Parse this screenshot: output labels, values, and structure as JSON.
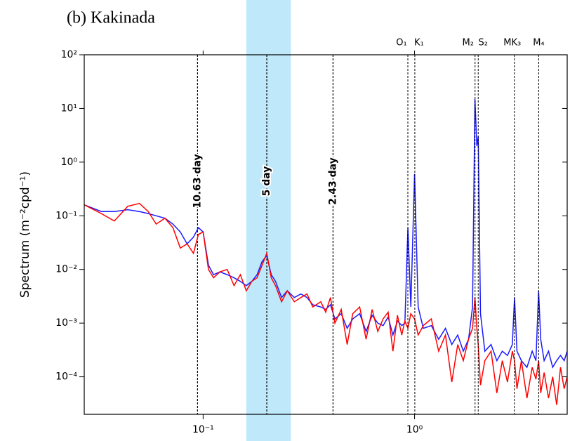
{
  "chart_data": {
    "type": "line",
    "title": "(b) Kakinada",
    "ylabel": "Spectrum (m⁻²cpd⁻¹)",
    "xscale": "log",
    "yscale": "log",
    "xlim": [
      0.0274,
      5.27
    ],
    "ylim": [
      2e-05,
      100
    ],
    "xticks": [
      {
        "value": 0.1,
        "label": "10⁻¹"
      },
      {
        "value": 1,
        "label": "10⁰"
      }
    ],
    "yticks": [
      {
        "value": 100,
        "label": "10²"
      },
      {
        "value": 10,
        "label": "10¹"
      },
      {
        "value": 1,
        "label": "10⁰"
      },
      {
        "value": 0.1,
        "label": "10⁻¹"
      },
      {
        "value": 0.01,
        "label": "10⁻²"
      },
      {
        "value": 0.001,
        "label": "10⁻³"
      },
      {
        "value": 0.0001,
        "label": "10⁻⁴"
      }
    ],
    "shaded_band": {
      "range": [
        0.16,
        0.26
      ],
      "color": "#bfe8fb"
    },
    "period_lines": [
      {
        "label": "10.63 day",
        "x": 0.0941
      },
      {
        "label": "5 day",
        "x": 0.2
      },
      {
        "label": "2.43 day",
        "x": 0.4115
      }
    ],
    "tidal_lines": [
      {
        "label": "O₁",
        "x": 0.9295
      },
      {
        "label": "K₁",
        "x": 1.0027
      },
      {
        "label": "M₂",
        "x": 1.9323
      },
      {
        "label": "S₂",
        "x": 2.0
      },
      {
        "label": "MK₃",
        "x": 2.9653
      },
      {
        "label": "M₄",
        "x": 3.8645
      }
    ],
    "x": [
      0.0274,
      0.033,
      0.038,
      0.044,
      0.05,
      0.055,
      0.06,
      0.066,
      0.072,
      0.078,
      0.084,
      0.09,
      0.095,
      0.1,
      0.106,
      0.112,
      0.12,
      0.13,
      0.14,
      0.15,
      0.16,
      0.17,
      0.18,
      0.19,
      0.2,
      0.21,
      0.22,
      0.235,
      0.25,
      0.27,
      0.29,
      0.31,
      0.33,
      0.36,
      0.38,
      0.4,
      0.42,
      0.45,
      0.48,
      0.51,
      0.55,
      0.59,
      0.63,
      0.67,
      0.71,
      0.75,
      0.79,
      0.83,
      0.87,
      0.9,
      0.93,
      0.96,
      1.0,
      1.04,
      1.1,
      1.2,
      1.3,
      1.4,
      1.5,
      1.6,
      1.7,
      1.8,
      1.88,
      1.93,
      1.97,
      2.0,
      2.05,
      2.15,
      2.3,
      2.45,
      2.6,
      2.75,
      2.9,
      2.97,
      3.05,
      3.2,
      3.4,
      3.6,
      3.75,
      3.86,
      3.95,
      4.1,
      4.3,
      4.5,
      4.7,
      4.9,
      5.1,
      5.27
    ],
    "series": [
      {
        "color": "#1a1aff",
        "values": [
          0.16,
          0.12,
          0.12,
          0.13,
          0.12,
          0.11,
          0.1,
          0.09,
          0.07,
          0.05,
          0.03,
          0.04,
          0.06,
          0.05,
          0.012,
          0.008,
          0.009,
          0.008,
          0.007,
          0.006,
          0.005,
          0.006,
          0.008,
          0.014,
          0.018,
          0.008,
          0.006,
          0.003,
          0.004,
          0.003,
          0.0035,
          0.003,
          0.0022,
          0.002,
          0.0018,
          0.0022,
          0.0012,
          0.0015,
          0.0008,
          0.0012,
          0.0015,
          0.0007,
          0.0014,
          0.001,
          0.0009,
          0.0013,
          0.0006,
          0.0011,
          0.0009,
          0.001,
          0.06,
          0.002,
          0.6,
          0.002,
          0.0008,
          0.0009,
          0.0005,
          0.0008,
          0.0004,
          0.0006,
          0.0003,
          0.0005,
          0.002,
          15,
          2,
          3,
          0.0015,
          0.0003,
          0.0004,
          0.0002,
          0.0003,
          0.00025,
          0.0004,
          0.003,
          0.0003,
          0.0002,
          0.00015,
          0.0003,
          0.0002,
          0.004,
          0.0005,
          0.0002,
          0.0003,
          0.00015,
          0.0002,
          0.00025,
          0.0002,
          0.0003
        ]
      },
      {
        "color": "#ff0000",
        "values": [
          0.16,
          0.11,
          0.08,
          0.15,
          0.17,
          0.12,
          0.07,
          0.09,
          0.06,
          0.025,
          0.03,
          0.02,
          0.045,
          0.05,
          0.01,
          0.007,
          0.009,
          0.01,
          0.005,
          0.008,
          0.004,
          0.006,
          0.007,
          0.012,
          0.02,
          0.007,
          0.005,
          0.0025,
          0.004,
          0.0025,
          0.003,
          0.0035,
          0.002,
          0.0025,
          0.0016,
          0.003,
          0.001,
          0.0018,
          0.0004,
          0.0015,
          0.002,
          0.0005,
          0.0018,
          0.0007,
          0.0012,
          0.0016,
          0.0003,
          0.0014,
          0.0006,
          0.0011,
          0.0008,
          0.0015,
          0.0012,
          0.0006,
          0.0009,
          0.0012,
          0.0003,
          0.0006,
          8e-05,
          0.0004,
          0.0002,
          0.0005,
          0.0008,
          0.003,
          0.0008,
          0.0004,
          7e-05,
          0.0002,
          0.0003,
          5e-05,
          0.0002,
          8e-05,
          0.0003,
          0.0002,
          6e-05,
          0.0002,
          4e-05,
          0.00015,
          9e-05,
          0.0002,
          5e-05,
          0.00012,
          4e-05,
          0.0001,
          3e-05,
          0.00015,
          6e-05,
          0.0001
        ]
      }
    ]
  }
}
